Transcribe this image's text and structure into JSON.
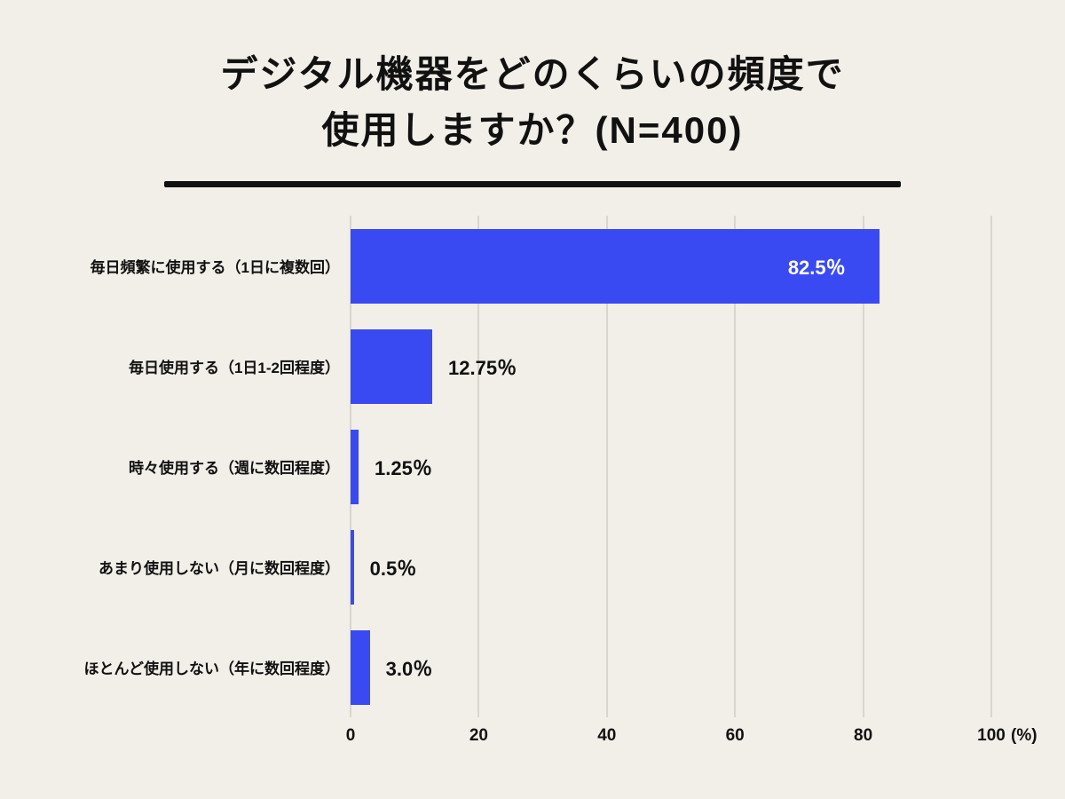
{
  "chart_data": {
    "type": "bar",
    "orientation": "horizontal",
    "title": "デジタル機器をどのくらいの頻度で使用しますか？(N=400)",
    "title_lines": [
      "デジタル機器をどのくらいの頻度で",
      "使用しますか？(N=400)"
    ],
    "sample_size": "N=400",
    "categories": [
      "毎日頻繁に使用する（1日に複数回）",
      "毎日使用する（1日1-2回程度）",
      "時々使用する（週に数回程度）",
      "あまり使用しない（月に数回程度）",
      "ほとんど使用しない（年に数回程度）"
    ],
    "values": [
      82.5,
      12.75,
      1.25,
      0.5,
      3.0
    ],
    "value_labels": [
      "82.5％",
      "12.75％",
      "1.25％",
      "0.5％",
      "3.0％"
    ],
    "xlabel": "",
    "ylabel": "",
    "xlim": [
      0,
      100
    ],
    "ticks": [
      0,
      20,
      40,
      60,
      80,
      100
    ],
    "unit_label": "(%)",
    "grid": true,
    "legend": false,
    "bar_color": "#3a4af2",
    "background_color": "#f2efe9",
    "gridline_color": "#d9d6cf",
    "value_label_inside_color": "#ffffff",
    "value_label_outside_color": "#111111"
  }
}
